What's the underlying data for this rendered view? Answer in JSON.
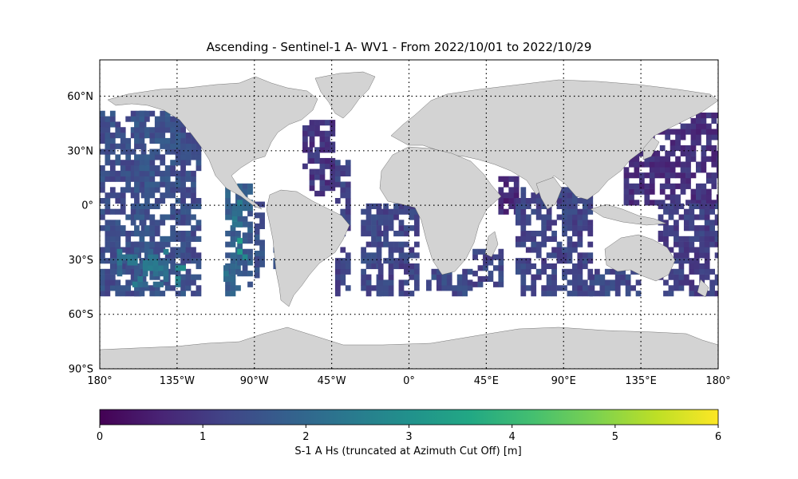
{
  "title": "Ascending - Sentinel-1 A- WV1 - From 2022/10/01 to 2022/10/29",
  "map": {
    "projection": "PlateCarree",
    "extent": {
      "lon": [
        -180,
        180
      ],
      "lat": [
        -90,
        80
      ]
    },
    "land_color": "#d3d3d3",
    "ocean_color": "#ffffff",
    "gridlines": "dotted",
    "lon_ticks": [
      {
        "value": -180,
        "label": "180°"
      },
      {
        "value": -135,
        "label": "135°W"
      },
      {
        "value": -90,
        "label": "90°W"
      },
      {
        "value": -45,
        "label": "45°W"
      },
      {
        "value": 0,
        "label": "0°"
      },
      {
        "value": 45,
        "label": "45°E"
      },
      {
        "value": 90,
        "label": "90°E"
      },
      {
        "value": 135,
        "label": "135°E"
      },
      {
        "value": 180,
        "label": "180°"
      }
    ],
    "lat_ticks": [
      {
        "value": 60,
        "label": "60°N"
      },
      {
        "value": 30,
        "label": "30°N"
      },
      {
        "value": 0,
        "label": "0°"
      },
      {
        "value": -30,
        "label": "30°S"
      },
      {
        "value": -60,
        "label": "60°S"
      },
      {
        "value": -90,
        "label": "90°S"
      }
    ],
    "data_lat_range": [
      -50,
      50
    ],
    "colorbar": {
      "label": "S-1 A Hs (truncated at Azimuth Cut Off) [m]",
      "cmap": "viridis",
      "min": 0,
      "max": 6,
      "ticks": [
        0,
        1,
        2,
        3,
        4,
        5,
        6
      ]
    },
    "swaths": [
      {
        "lon_min": -180,
        "lon_max": -153,
        "lat_min": -50,
        "lat_max": 50,
        "hs": 1.4
      },
      {
        "lon_min": -160,
        "lon_max": -130,
        "lat_min": -50,
        "lat_max": 50,
        "hs": 1.5
      },
      {
        "lon_min": -133,
        "lon_max": -121,
        "lat_min": -50,
        "lat_max": 45,
        "hs": 1.4
      },
      {
        "lon_min": -107,
        "lon_max": -100,
        "lat_min": -50,
        "lat_max": 10,
        "hs": 1.8
      },
      {
        "lon_min": -100,
        "lon_max": -93,
        "lat_min": -45,
        "lat_max": 10,
        "hs": 1.7
      },
      {
        "lon_min": -90,
        "lon_max": -84,
        "lat_min": -40,
        "lat_max": 2,
        "hs": 1.5
      },
      {
        "lon_min": -79,
        "lon_max": -72,
        "lat_min": -35,
        "lat_max": -10,
        "hs": 1.4
      },
      {
        "lon_min": -62,
        "lon_max": -56,
        "lat_min": 20,
        "lat_max": 42,
        "hs": 0.9
      },
      {
        "lon_min": -58,
        "lon_max": -45,
        "lat_min": 5,
        "lat_max": 45,
        "hs": 0.9
      },
      {
        "lon_min": -43,
        "lon_max": -35,
        "lat_min": -50,
        "lat_max": 25,
        "hs": 1.2
      },
      {
        "lon_min": -28,
        "lon_max": -18,
        "lat_min": -50,
        "lat_max": 0,
        "hs": 1.3
      },
      {
        "lon_min": -18,
        "lon_max": 5,
        "lat_min": -50,
        "lat_max": 0,
        "hs": 1.2
      },
      {
        "lon_min": 10,
        "lon_max": 35,
        "lat_min": -50,
        "lat_max": -35,
        "hs": 1.3
      },
      {
        "lon_min": 37,
        "lon_max": 55,
        "lat_min": -45,
        "lat_max": -25,
        "hs": 1.2
      },
      {
        "lon_min": 52,
        "lon_max": 62,
        "lat_min": -5,
        "lat_max": 15,
        "hs": 0.6
      },
      {
        "lon_min": 62,
        "lon_max": 105,
        "lat_min": -50,
        "lat_max": 10,
        "hs": 1.2
      },
      {
        "lon_min": 105,
        "lon_max": 133,
        "lat_min": -50,
        "lat_max": -35,
        "hs": 1.3
      },
      {
        "lon_min": 125,
        "lon_max": 180,
        "lat_min": 0,
        "lat_max": 50,
        "hs": 0.8
      },
      {
        "lon_min": 145,
        "lon_max": 180,
        "lat_min": -50,
        "lat_max": 0,
        "hs": 1.1
      }
    ],
    "highlights": [
      {
        "lon_min": -170,
        "lon_max": -140,
        "lat_min": -45,
        "lat_max": -25,
        "hs": 2.3
      },
      {
        "lon_min": -142,
        "lon_max": -132,
        "lat_min": -45,
        "lat_max": -35,
        "hs": 2.6
      },
      {
        "lon_min": -100,
        "lon_max": -96,
        "lat_min": -30,
        "lat_max": -20,
        "hs": 3.0
      },
      {
        "lon_min": -103,
        "lon_max": -99,
        "lat_min": -12,
        "lat_max": 2,
        "hs": 2.3
      },
      {
        "lon_min": -108,
        "lon_max": -104,
        "lat_min": -42,
        "lat_max": -32,
        "hs": 2.1
      }
    ]
  }
}
